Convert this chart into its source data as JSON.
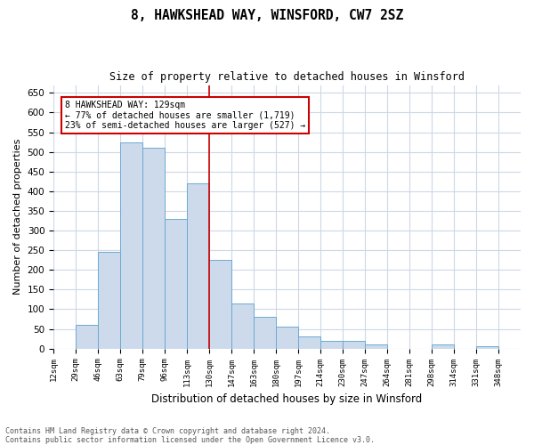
{
  "title": "8, HAWKSHEAD WAY, WINSFORD, CW7 2SZ",
  "subtitle": "Size of property relative to detached houses in Winsford",
  "xlabel": "Distribution of detached houses by size in Winsford",
  "ylabel": "Number of detached properties",
  "bin_labels": [
    "12sqm",
    "29sqm",
    "46sqm",
    "63sqm",
    "79sqm",
    "96sqm",
    "113sqm",
    "130sqm",
    "147sqm",
    "163sqm",
    "180sqm",
    "197sqm",
    "214sqm",
    "230sqm",
    "247sqm",
    "264sqm",
    "281sqm",
    "298sqm",
    "314sqm",
    "331sqm",
    "348sqm"
  ],
  "bar_heights": [
    0,
    60,
    245,
    525,
    510,
    330,
    420,
    225,
    115,
    80,
    55,
    30,
    20,
    20,
    10,
    0,
    0,
    10,
    0,
    5,
    0
  ],
  "bar_color": "#ccdaeb",
  "bar_edge_color": "#6aabd2",
  "property_line_bin": 7,
  "property_line_color": "#cc0000",
  "annotation_text": "8 HAWKSHEAD WAY: 129sqm\n← 77% of detached houses are smaller (1,719)\n23% of semi-detached houses are larger (527) →",
  "annotation_box_color": "#ffffff",
  "annotation_box_edge": "#cc0000",
  "ylim": [
    0,
    670
  ],
  "ytick_step": 50,
  "footer_line1": "Contains HM Land Registry data © Crown copyright and database right 2024.",
  "footer_line2": "Contains public sector information licensed under the Open Government Licence v3.0.",
  "background_color": "#ffffff",
  "grid_color": "#ccd8e8"
}
